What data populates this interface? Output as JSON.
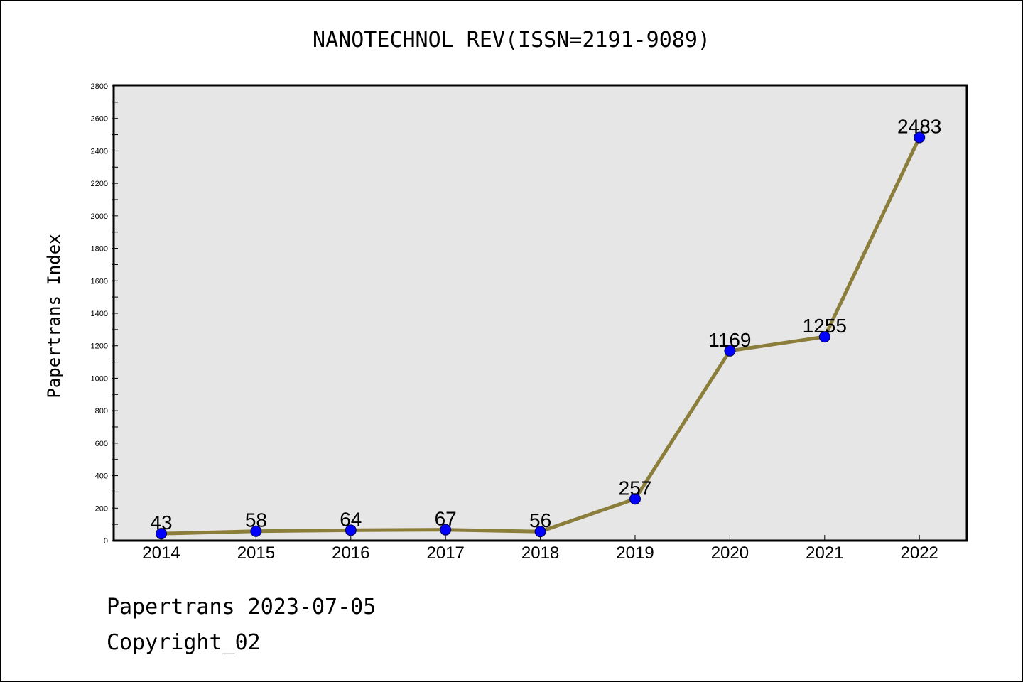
{
  "chart_data": {
    "type": "line",
    "title": "NANOTECHNOL REV(ISSN=2191-9089)",
    "ylabel": "Papertrans Index",
    "xlabel": "",
    "categories": [
      "2014",
      "2015",
      "2016",
      "2017",
      "2018",
      "2019",
      "2020",
      "2021",
      "2022"
    ],
    "series": [
      {
        "values": [
          43,
          58,
          64,
          67,
          56,
          257,
          1169,
          1255,
          2483
        ]
      }
    ],
    "ylim": [
      0,
      2800
    ],
    "yticks": [
      0,
      200,
      400,
      600,
      800,
      1000,
      1200,
      1400,
      1600,
      1800,
      2000,
      2200,
      2400,
      2600,
      2800
    ],
    "grid": false,
    "data_labels": true,
    "colors": {
      "line": "#8b7d3a",
      "marker": "#0000ff",
      "plot_background": "#e6e6e6"
    }
  },
  "footer": {
    "line1": "Papertrans 2023-07-05",
    "line2": "Copyright_02"
  }
}
